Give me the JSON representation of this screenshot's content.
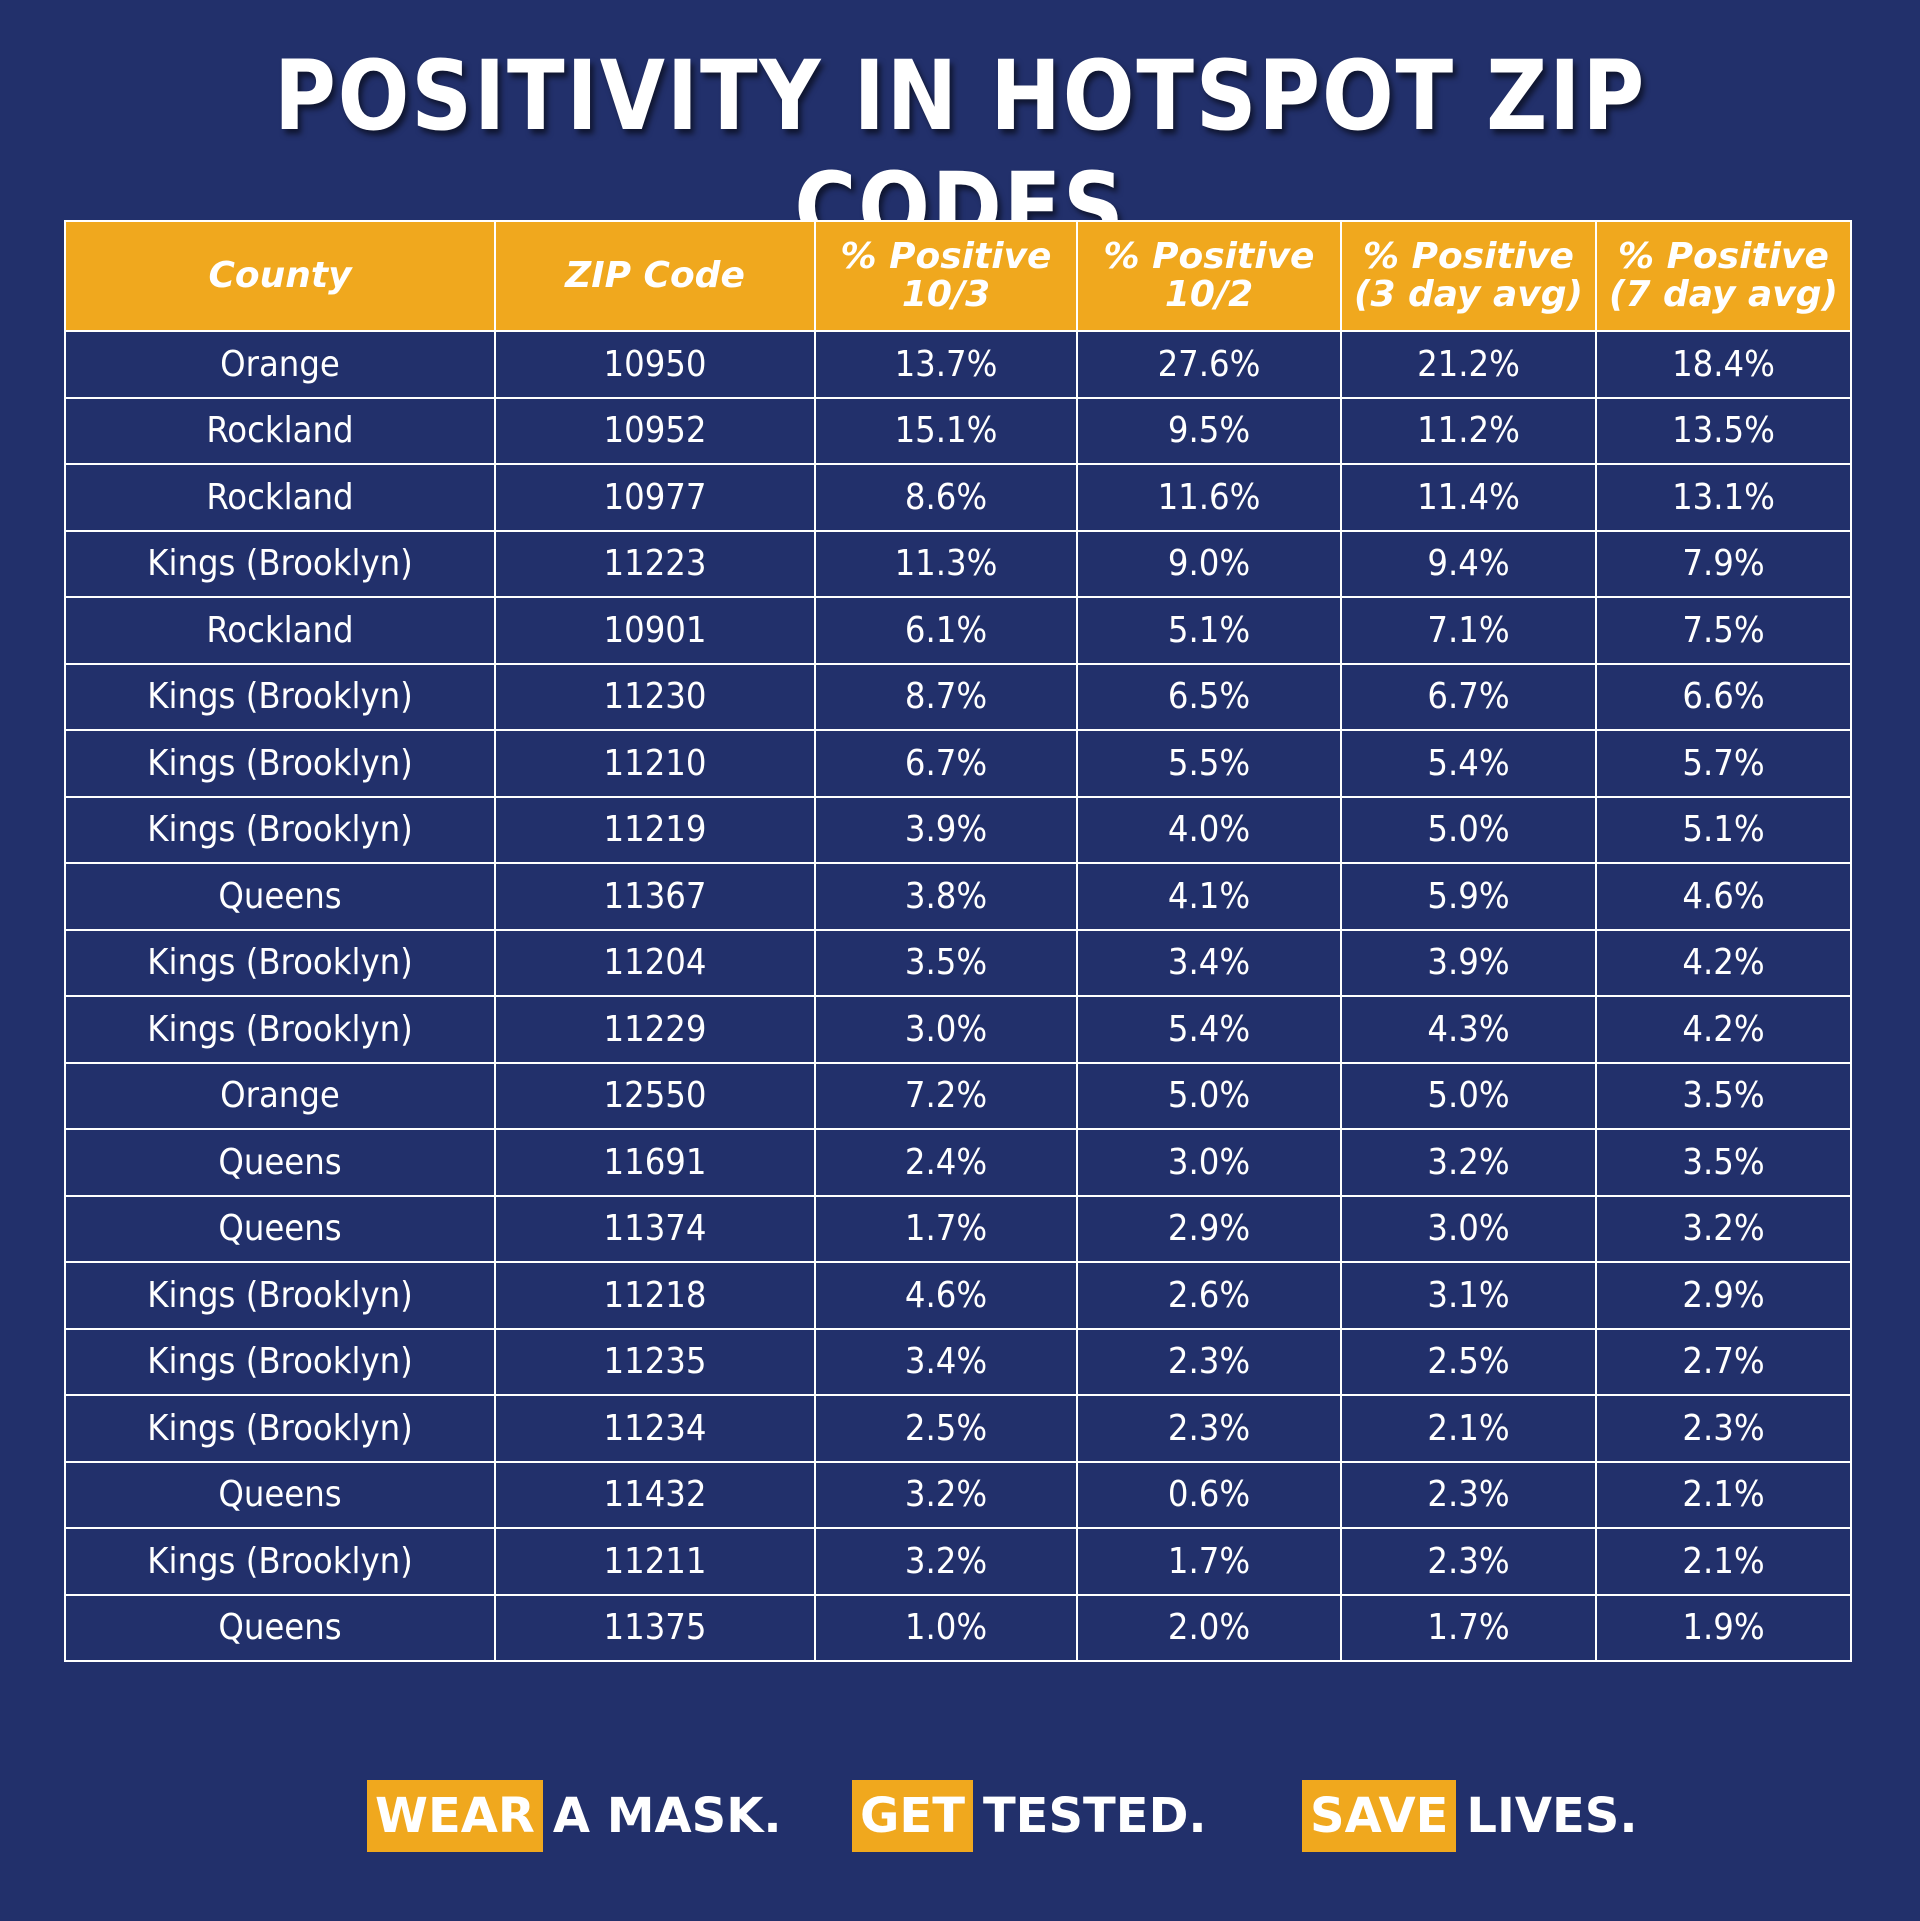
{
  "title": "POSITIVITY IN HOTSPOT ZIP CODES",
  "chart_data": {
    "type": "table",
    "columns": [
      [
        "County"
      ],
      [
        "ZIP Code"
      ],
      [
        "% Positive",
        "10/3"
      ],
      [
        "% Positive",
        "10/2"
      ],
      [
        "% Positive",
        "(3 day avg)"
      ],
      [
        "% Positive",
        "(7 day avg)"
      ]
    ],
    "rows": [
      [
        "Orange",
        "10950",
        "13.7%",
        "27.6%",
        "21.2%",
        "18.4%"
      ],
      [
        "Rockland",
        "10952",
        "15.1%",
        "9.5%",
        "11.2%",
        "13.5%"
      ],
      [
        "Rockland",
        "10977",
        "8.6%",
        "11.6%",
        "11.4%",
        "13.1%"
      ],
      [
        "Kings (Brooklyn)",
        "11223",
        "11.3%",
        "9.0%",
        "9.4%",
        "7.9%"
      ],
      [
        "Rockland",
        "10901",
        "6.1%",
        "5.1%",
        "7.1%",
        "7.5%"
      ],
      [
        "Kings (Brooklyn)",
        "11230",
        "8.7%",
        "6.5%",
        "6.7%",
        "6.6%"
      ],
      [
        "Kings (Brooklyn)",
        "11210",
        "6.7%",
        "5.5%",
        "5.4%",
        "5.7%"
      ],
      [
        "Kings (Brooklyn)",
        "11219",
        "3.9%",
        "4.0%",
        "5.0%",
        "5.1%"
      ],
      [
        "Queens",
        "11367",
        "3.8%",
        "4.1%",
        "5.9%",
        "4.6%"
      ],
      [
        "Kings (Brooklyn)",
        "11204",
        "3.5%",
        "3.4%",
        "3.9%",
        "4.2%"
      ],
      [
        "Kings (Brooklyn)",
        "11229",
        "3.0%",
        "5.4%",
        "4.3%",
        "4.2%"
      ],
      [
        "Orange",
        "12550",
        "7.2%",
        "5.0%",
        "5.0%",
        "3.5%"
      ],
      [
        "Queens",
        "11691",
        "2.4%",
        "3.0%",
        "3.2%",
        "3.5%"
      ],
      [
        "Queens",
        "11374",
        "1.7%",
        "2.9%",
        "3.0%",
        "3.2%"
      ],
      [
        "Kings (Brooklyn)",
        "11218",
        "4.6%",
        "2.6%",
        "3.1%",
        "2.9%"
      ],
      [
        "Kings (Brooklyn)",
        "11235",
        "3.4%",
        "2.3%",
        "2.5%",
        "2.7%"
      ],
      [
        "Kings (Brooklyn)",
        "11234",
        "2.5%",
        "2.3%",
        "2.1%",
        "2.3%"
      ],
      [
        "Queens",
        "11432",
        "3.2%",
        "0.6%",
        "2.3%",
        "2.1%"
      ],
      [
        "Kings (Brooklyn)",
        "11211",
        "3.2%",
        "1.7%",
        "2.3%",
        "2.1%"
      ],
      [
        "Queens",
        "11375",
        "1.0%",
        "2.0%",
        "1.7%",
        "1.9%"
      ]
    ]
  },
  "slogans": [
    {
      "highlight": "WEAR",
      "rest": "A MASK."
    },
    {
      "highlight": "GET",
      "rest": "TESTED."
    },
    {
      "highlight": "SAVE",
      "rest": "LIVES."
    }
  ],
  "colors": {
    "background": "#22306b",
    "header": "#f0a81e",
    "text": "#ffffff"
  }
}
